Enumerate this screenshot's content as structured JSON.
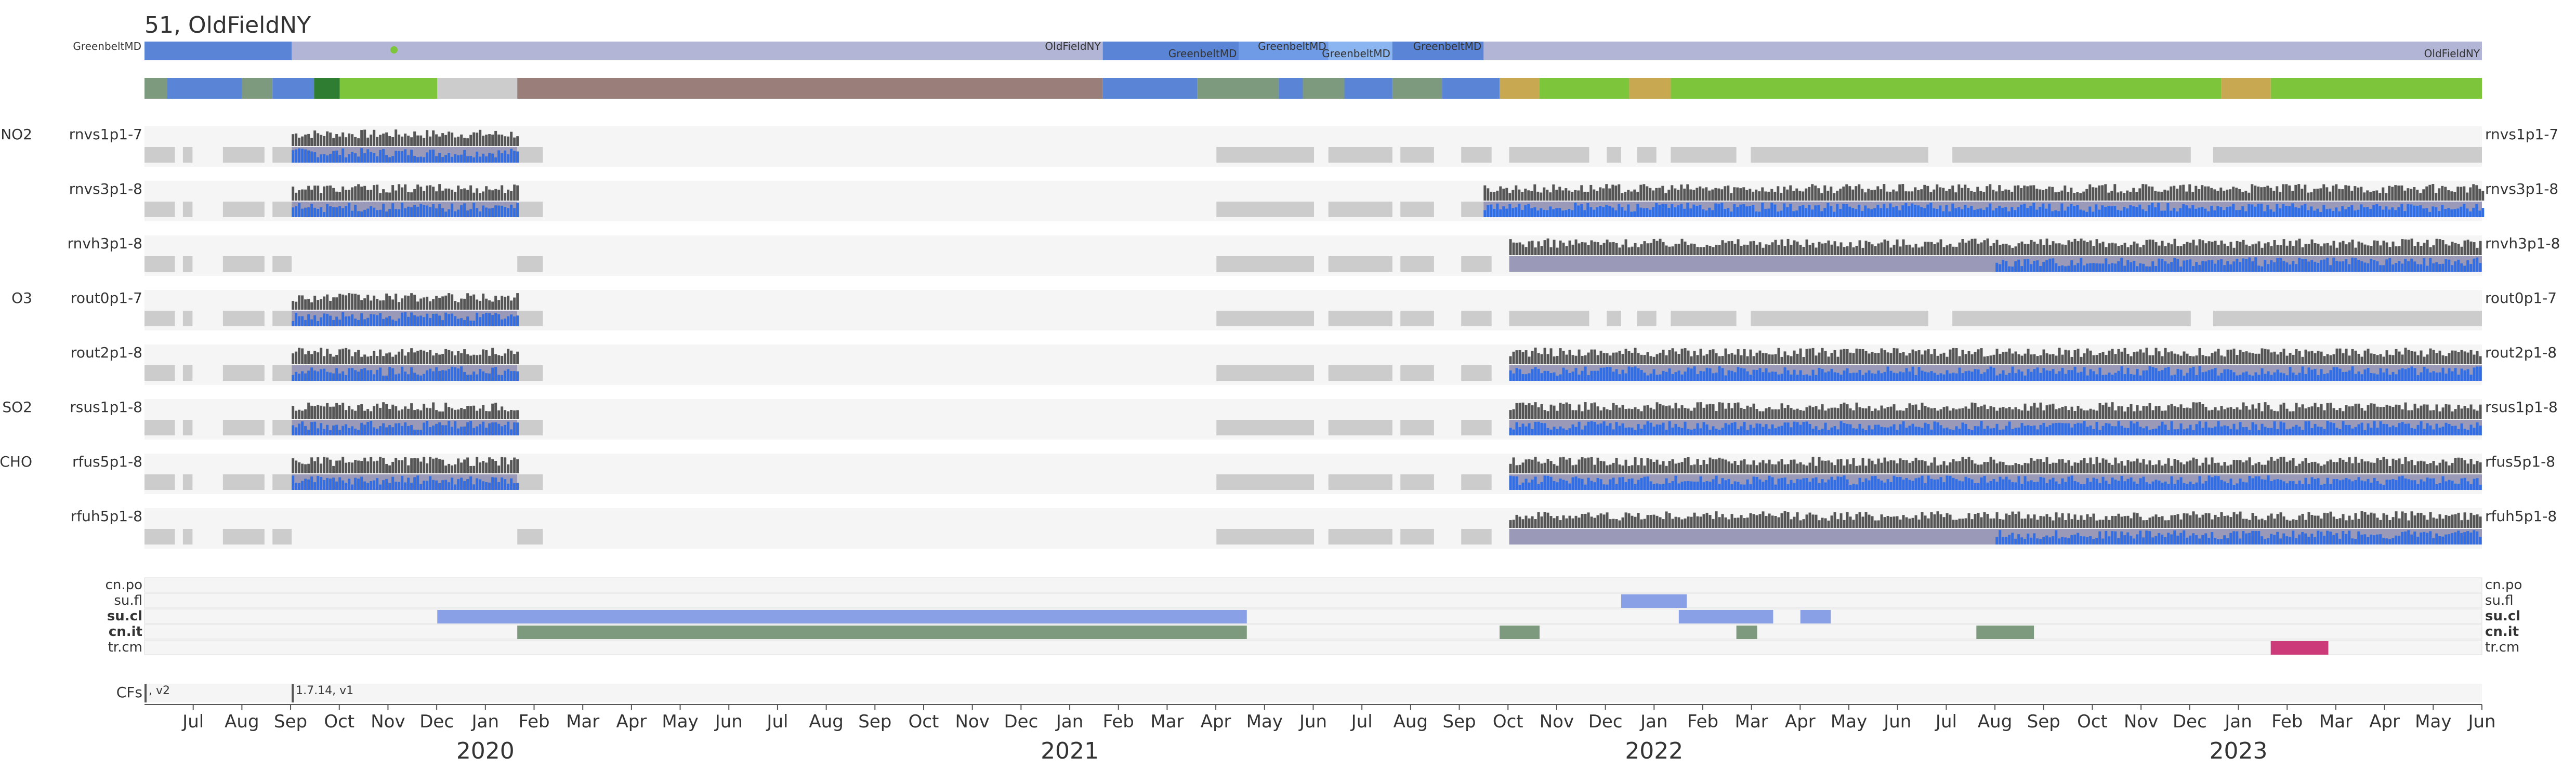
{
  "chart_data": {
    "type": "timeline",
    "title": "51, OldFieldNY",
    "x_axis": {
      "range": [
        "2019-06-01",
        "2023-06-01"
      ],
      "months": [
        "Jul",
        "Aug",
        "Sep",
        "Oct",
        "Nov",
        "Dec",
        "Jan",
        "Feb",
        "Mar",
        "Apr",
        "May",
        "Jun",
        "Jul",
        "Aug",
        "Sep",
        "Oct",
        "Nov",
        "Dec",
        "Jan",
        "Feb",
        "Mar",
        "Apr",
        "May",
        "Jun",
        "Jul",
        "Aug",
        "Sep",
        "Oct",
        "Nov",
        "Dec",
        "Jan",
        "Feb",
        "Mar",
        "Apr",
        "May",
        "Jun",
        "Jul",
        "Aug",
        "Sep",
        "Oct",
        "Nov",
        "Dec",
        "Jan",
        "Feb",
        "Mar",
        "Apr",
        "May",
        "Jun"
      ],
      "years": [
        "2020",
        "2021",
        "2022",
        "2023"
      ]
    },
    "location_segments": [
      {
        "label": "GreenbeltMD",
        "start": "2019-06-01",
        "end": "2019-09-01",
        "color": "#5a85d6"
      },
      {
        "label": "",
        "start": "2019-09-01",
        "end": "2021-01-20",
        "color": "#b3b5d6"
      },
      {
        "label": "OldFieldNY",
        "start": "2020-12-01",
        "end": "2021-01-20",
        "color": "#b3b5d6"
      },
      {
        "label": "GreenbeltMD",
        "start": "2021-01-20",
        "end": "2021-04-15",
        "color": "#5a85d6"
      },
      {
        "label": "GreenbeltMD",
        "start": "2021-04-15",
        "end": "2021-06-10",
        "color": "#6f9ae6"
      },
      {
        "label": "GreenbeltMD",
        "start": "2021-06-10",
        "end": "2021-07-20",
        "color": "#8ab5f0"
      },
      {
        "label": "GreenbeltMD",
        "start": "2021-07-20",
        "end": "2021-09-15",
        "color": "#5a85d6"
      },
      {
        "label": "OldFieldNY",
        "start": "2021-09-15",
        "end": "2023-06-01",
        "color": "#b3b5d6"
      }
    ],
    "status_segments": [
      {
        "start": "2019-06-01",
        "end": "2019-06-15",
        "color": "#7e9a7e"
      },
      {
        "start": "2019-06-15",
        "end": "2019-08-01",
        "color": "#5a85d6"
      },
      {
        "start": "2019-08-01",
        "end": "2019-08-20",
        "color": "#7e9a7e"
      },
      {
        "start": "2019-08-20",
        "end": "2019-09-15",
        "color": "#5a85d6"
      },
      {
        "start": "2019-09-15",
        "end": "2019-10-01",
        "color": "#2f7d32"
      },
      {
        "start": "2019-10-01",
        "end": "2019-12-01",
        "color": "#7dc53a"
      },
      {
        "start": "2019-12-01",
        "end": "2020-01-20",
        "color": "#cccccc"
      },
      {
        "start": "2020-01-20",
        "end": "2021-01-20",
        "color": "#9a7e7a"
      },
      {
        "start": "2021-01-20",
        "end": "2021-03-20",
        "color": "#5a85d6"
      },
      {
        "start": "2021-03-20",
        "end": "2021-05-10",
        "color": "#7e9a7e"
      },
      {
        "start": "2021-05-10",
        "end": "2021-05-25",
        "color": "#5a85d6"
      },
      {
        "start": "2021-05-25",
        "end": "2021-06-20",
        "color": "#7e9a7e"
      },
      {
        "start": "2021-06-20",
        "end": "2021-07-20",
        "color": "#5a85d6"
      },
      {
        "start": "2021-07-20",
        "end": "2021-08-20",
        "color": "#7e9a7e"
      },
      {
        "start": "2021-08-20",
        "end": "2021-09-25",
        "color": "#5a85d6"
      },
      {
        "start": "2021-09-25",
        "end": "2021-10-20",
        "color": "#c8a850"
      },
      {
        "start": "2021-10-20",
        "end": "2021-12-15",
        "color": "#7dc53a"
      },
      {
        "start": "2021-12-15",
        "end": "2022-01-10",
        "color": "#c8a850"
      },
      {
        "start": "2022-01-10",
        "end": "2022-12-20",
        "color": "#7dc53a"
      },
      {
        "start": "2022-12-20",
        "end": "2023-01-20",
        "color": "#c8a850"
      },
      {
        "start": "2023-01-20",
        "end": "2023-06-01",
        "color": "#7dc53a"
      }
    ],
    "groups": [
      {
        "label": "NO2",
        "rows": [
          "rnvs1p1-7",
          "rnvs3p1-8",
          "rnvh3p1-8"
        ]
      },
      {
        "label": "O3",
        "rows": [
          "rout0p1-7",
          "rout2p1-8"
        ]
      },
      {
        "label": "SO2",
        "rows": [
          "rsus1p1-8"
        ]
      },
      {
        "label": "HCHO",
        "rows": [
          "rfus5p1-8",
          "rfuh5p1-8"
        ]
      }
    ],
    "product_rows": [
      {
        "name": "rnvs1p1-7",
        "group": "NO2",
        "data": [
          [
            "2019-09-01",
            "2020-01-20"
          ]
        ],
        "blue": [
          [
            "2019-09-01",
            "2020-01-20"
          ]
        ]
      },
      {
        "name": "rnvs3p1-8",
        "group": "",
        "data": [
          [
            "2019-09-01",
            "2020-01-20"
          ],
          [
            "2021-09-15",
            "2023-06-01"
          ]
        ],
        "blue": [
          [
            "2019-09-01",
            "2020-01-20"
          ],
          [
            "2021-09-15",
            "2023-06-01"
          ]
        ]
      },
      {
        "name": "rnvh3p1-8",
        "group": "",
        "data": [
          [
            "2021-10-01",
            "2023-06-01"
          ]
        ],
        "blue": [
          [
            "2022-08-01",
            "2023-06-01"
          ]
        ]
      },
      {
        "name": "rout0p1-7",
        "group": "O3",
        "data": [
          [
            "2019-09-01",
            "2020-01-20"
          ]
        ],
        "blue": [
          [
            "2019-09-01",
            "2020-01-20"
          ]
        ]
      },
      {
        "name": "rout2p1-8",
        "group": "",
        "data": [
          [
            "2019-09-01",
            "2020-01-20"
          ],
          [
            "2021-10-01",
            "2023-06-01"
          ]
        ],
        "blue": [
          [
            "2019-09-01",
            "2020-01-20"
          ],
          [
            "2021-10-01",
            "2023-06-01"
          ]
        ]
      },
      {
        "name": "rsus1p1-8",
        "group": "SO2",
        "data": [
          [
            "2019-09-01",
            "2020-01-20"
          ],
          [
            "2021-10-01",
            "2023-06-01"
          ]
        ],
        "blue": [
          [
            "2019-09-01",
            "2020-01-20"
          ],
          [
            "2021-10-01",
            "2023-06-01"
          ]
        ]
      },
      {
        "name": "rfus5p1-8",
        "group": "HCHO",
        "data": [
          [
            "2019-09-01",
            "2020-01-20"
          ],
          [
            "2021-10-01",
            "2023-06-01"
          ]
        ],
        "blue": [
          [
            "2019-09-01",
            "2020-01-20"
          ],
          [
            "2021-10-01",
            "2023-06-01"
          ]
        ]
      },
      {
        "name": "rfuh5p1-8",
        "group": "",
        "data": [
          [
            "2021-10-01",
            "2023-06-01"
          ]
        ],
        "blue": [
          [
            "2022-08-01",
            "2023-06-01"
          ]
        ]
      }
    ],
    "flag_rows": [
      {
        "name": "cn.po",
        "bold": false,
        "segments": []
      },
      {
        "name": "su.fl",
        "bold": false,
        "segments": [
          {
            "start": "2021-12-10",
            "end": "2022-01-20",
            "color": "#8aa0e6"
          }
        ]
      },
      {
        "name": "su.cl",
        "bold": true,
        "segments": [
          {
            "start": "2019-12-01",
            "end": "2021-04-20",
            "color": "#8aa0e6"
          },
          {
            "start": "2022-01-15",
            "end": "2022-03-15",
            "color": "#8aa0e6"
          },
          {
            "start": "2022-04-01",
            "end": "2022-04-20",
            "color": "#8aa0e6"
          }
        ]
      },
      {
        "name": "cn.it",
        "bold": true,
        "segments": [
          {
            "start": "2020-01-20",
            "end": "2021-04-20",
            "color": "#7e9a7e"
          },
          {
            "start": "2021-09-25",
            "end": "2021-10-20",
            "color": "#7e9a7e"
          },
          {
            "start": "2022-02-20",
            "end": "2022-03-05",
            "color": "#7e9a7e"
          },
          {
            "start": "2022-07-20",
            "end": "2022-08-25",
            "color": "#7e9a7e"
          }
        ]
      },
      {
        "name": "tr.cm",
        "bold": false,
        "segments": [
          {
            "start": "2023-01-20",
            "end": "2023-02-25",
            "color": "#cc3a7a"
          }
        ]
      }
    ],
    "cfs": {
      "label": "CFs",
      "events": [
        {
          "date": "2019-06-01",
          "text": ", v2"
        },
        {
          "date": "2019-09-01",
          "text": "1.7.14, v1"
        }
      ]
    }
  }
}
